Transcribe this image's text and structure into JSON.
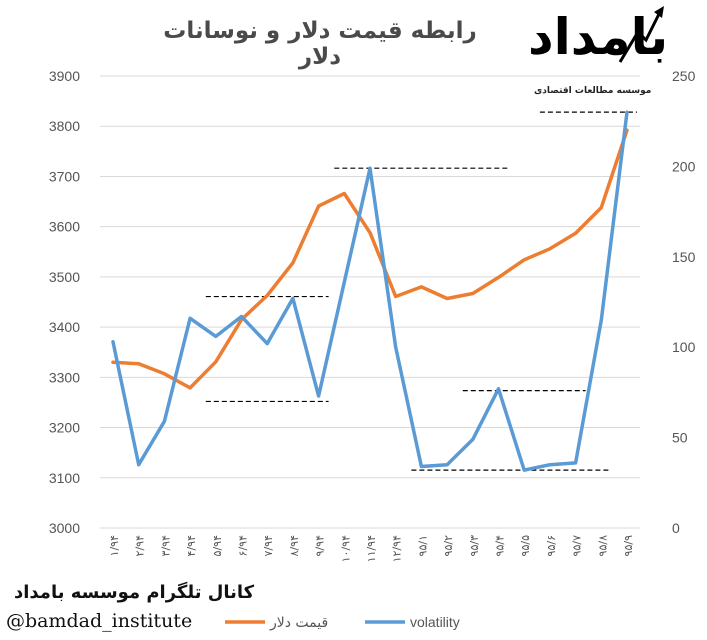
{
  "title": "رابطه قیمت دلار و نوسانات دلار",
  "logo": {
    "word": "بامداد",
    "subtitle": "موسسه مطالعات اقتصادی"
  },
  "footer": {
    "channel": "کانال تلگرام موسسه بامداد",
    "handle": "@bamdad_institute"
  },
  "colors": {
    "price": "#ED7D31",
    "volatility": "#5B9BD5",
    "axis_text": "#555555",
    "grid": "#d9d9d9"
  },
  "chart_data": {
    "type": "line",
    "legend_position": "bottom",
    "grid": true,
    "categories": [
      "۱/۹۴",
      "۲/۹۴",
      "۳/۹۴",
      "۴/۹۴",
      "۵/۹۴",
      "۶/۹۴",
      "۷/۹۴",
      "۸/۹۴",
      "۹/۹۴",
      "۱۰/۹۴",
      "۱۱/۹۴",
      "۱۲/۹۴",
      "۹۵/۱",
      "۹۵/۲",
      "۹۵/۳",
      "۹۵/۴",
      "۹۵/۵",
      "۹۵/۶",
      "۹۵/۷",
      "۹۵/۸",
      "۹۵/۹"
    ],
    "left_axis": {
      "ylim": [
        3000,
        3900
      ],
      "ticks": [
        3000,
        3100,
        3200,
        3300,
        3400,
        3500,
        3600,
        3700,
        3800,
        3900
      ]
    },
    "right_axis": {
      "ylim": [
        0,
        250
      ],
      "ticks": [
        0,
        50,
        100,
        150,
        200,
        250
      ]
    },
    "series": [
      {
        "name": "قیمت دلار",
        "axis": "left",
        "color": "#ED7D31",
        "values": [
          3330,
          3327,
          3307,
          3279,
          3331,
          3415,
          3463,
          3528,
          3641,
          3666,
          3588,
          3461,
          3480,
          3457,
          3467,
          3499,
          3534,
          3556,
          3587,
          3638,
          3792
        ]
      },
      {
        "name": "volatility",
        "axis": "right",
        "color": "#5B9BD5",
        "values": [
          103,
          35,
          59,
          116,
          106,
          117,
          102,
          127,
          73,
          136,
          199,
          100,
          34,
          35,
          49,
          77,
          32,
          35,
          36,
          115,
          230
        ]
      }
    ],
    "reference_lines": [
      {
        "axis": "right",
        "value": 128,
        "from": "۵/۹۴",
        "to": "۹/۹۴"
      },
      {
        "axis": "right",
        "value": 70,
        "from": "۵/۹۴",
        "to": "۹/۹۴"
      },
      {
        "axis": "right",
        "value": 199,
        "from": "۱۰/۹۴",
        "to": "۹۵/۴"
      },
      {
        "axis": "right",
        "value": 76,
        "from": "۹۵/۳",
        "to": "۹۵/۷"
      },
      {
        "axis": "right",
        "value": 32,
        "from": "۹۵/۱",
        "to": "۹۵/۸"
      },
      {
        "axis": "right",
        "value": 230,
        "from": "۹۵/۶",
        "to": "۹۵/۹"
      }
    ]
  }
}
